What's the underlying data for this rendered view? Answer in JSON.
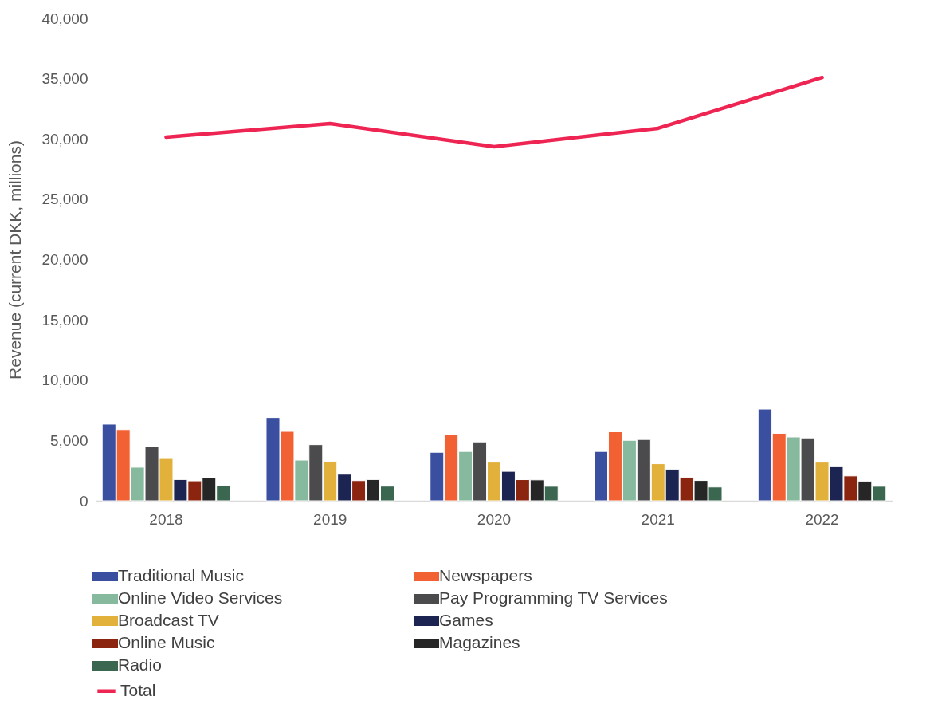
{
  "chart_data": {
    "type": "bar",
    "ylabel": "Revenue (current DKK, millions)",
    "categories": [
      "2018",
      "2019",
      "2020",
      "2021",
      "2022"
    ],
    "ylim": [
      0,
      40000
    ],
    "yticks": [
      {
        "value": 0,
        "label": "0"
      },
      {
        "value": 5000,
        "label": "5,000"
      },
      {
        "value": 10000,
        "label": "10,000"
      },
      {
        "value": 15000,
        "label": "15,000"
      },
      {
        "value": 20000,
        "label": "20,000"
      },
      {
        "value": 25000,
        "label": "25,000"
      },
      {
        "value": 30000,
        "label": "30,000"
      },
      {
        "value": 35000,
        "label": "35,000"
      },
      {
        "value": 40000,
        "label": "40,000"
      }
    ],
    "grid": false,
    "legend": "bottom",
    "series": [
      {
        "name": "Traditional Music",
        "color": "#3a4fa0",
        "values": [
          6350,
          6900,
          4020,
          4090,
          7600
        ]
      },
      {
        "name": "Newspapers",
        "color": "#f26134",
        "values": [
          5900,
          5750,
          5470,
          5720,
          5590
        ]
      },
      {
        "name": "Online Video Services",
        "color": "#86b99e",
        "values": [
          2780,
          3370,
          4090,
          5010,
          5290
        ]
      },
      {
        "name": "Pay Programming TV Services",
        "color": "#4b4b4d",
        "values": [
          4500,
          4650,
          4880,
          5080,
          5210
        ]
      },
      {
        "name": "Broadcast TV",
        "color": "#e2b13c",
        "values": [
          3500,
          3260,
          3200,
          3070,
          3200
        ]
      },
      {
        "name": "Games",
        "color": "#1c2452",
        "values": [
          1760,
          2200,
          2440,
          2620,
          2820
        ]
      },
      {
        "name": "Online Music",
        "color": "#8b2510",
        "values": [
          1650,
          1670,
          1750,
          1930,
          2060
        ]
      },
      {
        "name": "Magazines",
        "color": "#262626",
        "values": [
          1900,
          1760,
          1730,
          1680,
          1630
        ]
      },
      {
        "name": "Radio",
        "color": "#3b6650",
        "values": [
          1260,
          1210,
          1200,
          1140,
          1200
        ]
      },
      {
        "name": "Total",
        "type": "line",
        "color": "#ee2453",
        "values": [
          30150,
          31270,
          29360,
          30880,
          35100
        ]
      }
    ]
  }
}
